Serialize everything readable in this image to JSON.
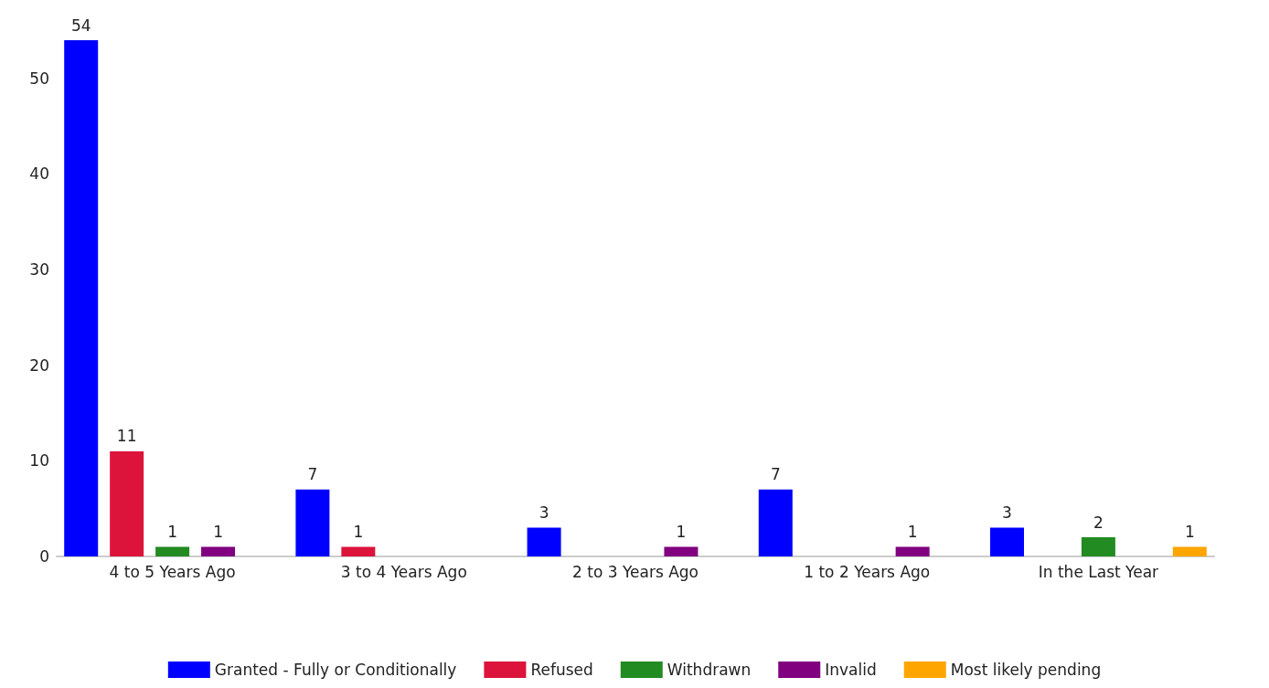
{
  "chart_data": {
    "type": "bar",
    "categories": [
      "4 to 5 Years Ago",
      "3 to 4 Years Ago",
      "2 to 3 Years Ago",
      "1 to 2 Years Ago",
      "In the Last Year"
    ],
    "series": [
      {
        "name": "Granted - Fully or Conditionally",
        "color": "#0000ff",
        "values": [
          54,
          7,
          3,
          7,
          3
        ]
      },
      {
        "name": "Refused",
        "color": "#dc143c",
        "values": [
          11,
          1,
          null,
          null,
          null
        ]
      },
      {
        "name": "Withdrawn",
        "color": "#228b22",
        "values": [
          1,
          null,
          null,
          null,
          2
        ]
      },
      {
        "name": "Invalid",
        "color": "#800080",
        "values": [
          1,
          null,
          1,
          1,
          null
        ]
      },
      {
        "name": "Most likely pending",
        "color": "#ffa500",
        "values": [
          null,
          null,
          null,
          null,
          1
        ]
      }
    ],
    "ylim": [
      0,
      54
    ],
    "yticks": [
      0,
      10,
      20,
      30,
      40,
      50
    ],
    "data_labels": true,
    "grid": false,
    "legend": "bottom"
  }
}
